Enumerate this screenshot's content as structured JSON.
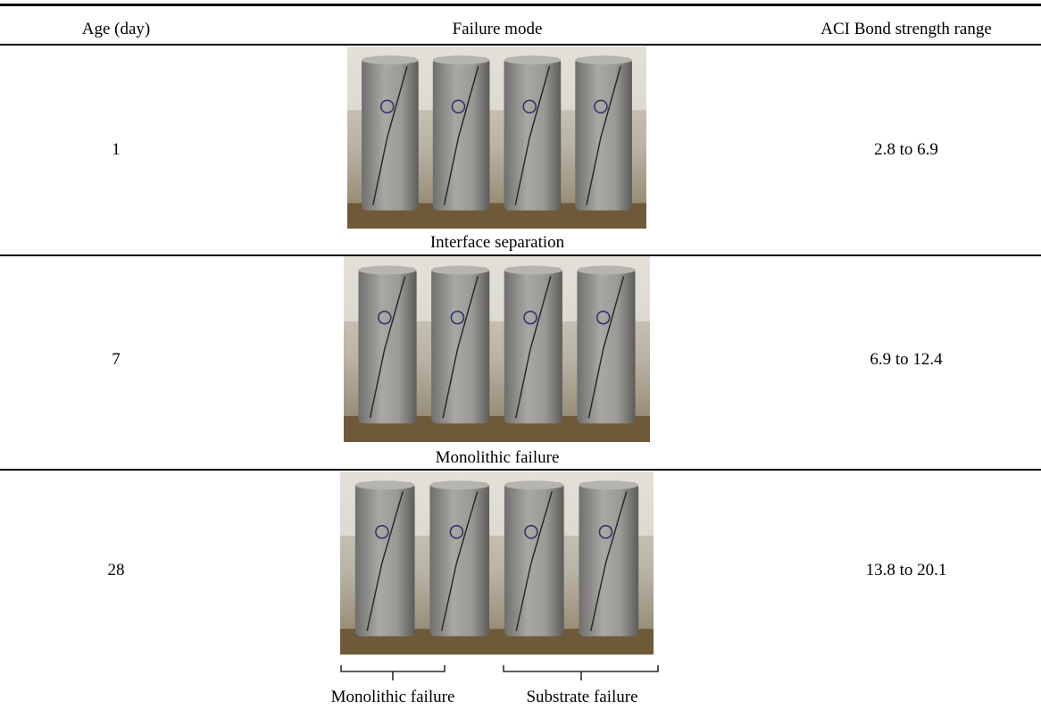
{
  "table": {
    "columns": [
      "Age (day)",
      "Failure mode",
      "ACI Bond strength range"
    ],
    "rows": [
      {
        "age": 1,
        "failure_mode": [
          "Interface separation"
        ],
        "bond_strength": "2.8 to 6.9"
      },
      {
        "age": 7,
        "failure_mode": [
          "Monolithic failure"
        ],
        "bond_strength": "6.9 to 12.4"
      },
      {
        "age": 28,
        "failure_mode": [
          "Monolithic failure",
          "Substrate failure"
        ],
        "bond_strength": "13.8 to 20.1"
      }
    ]
  }
}
